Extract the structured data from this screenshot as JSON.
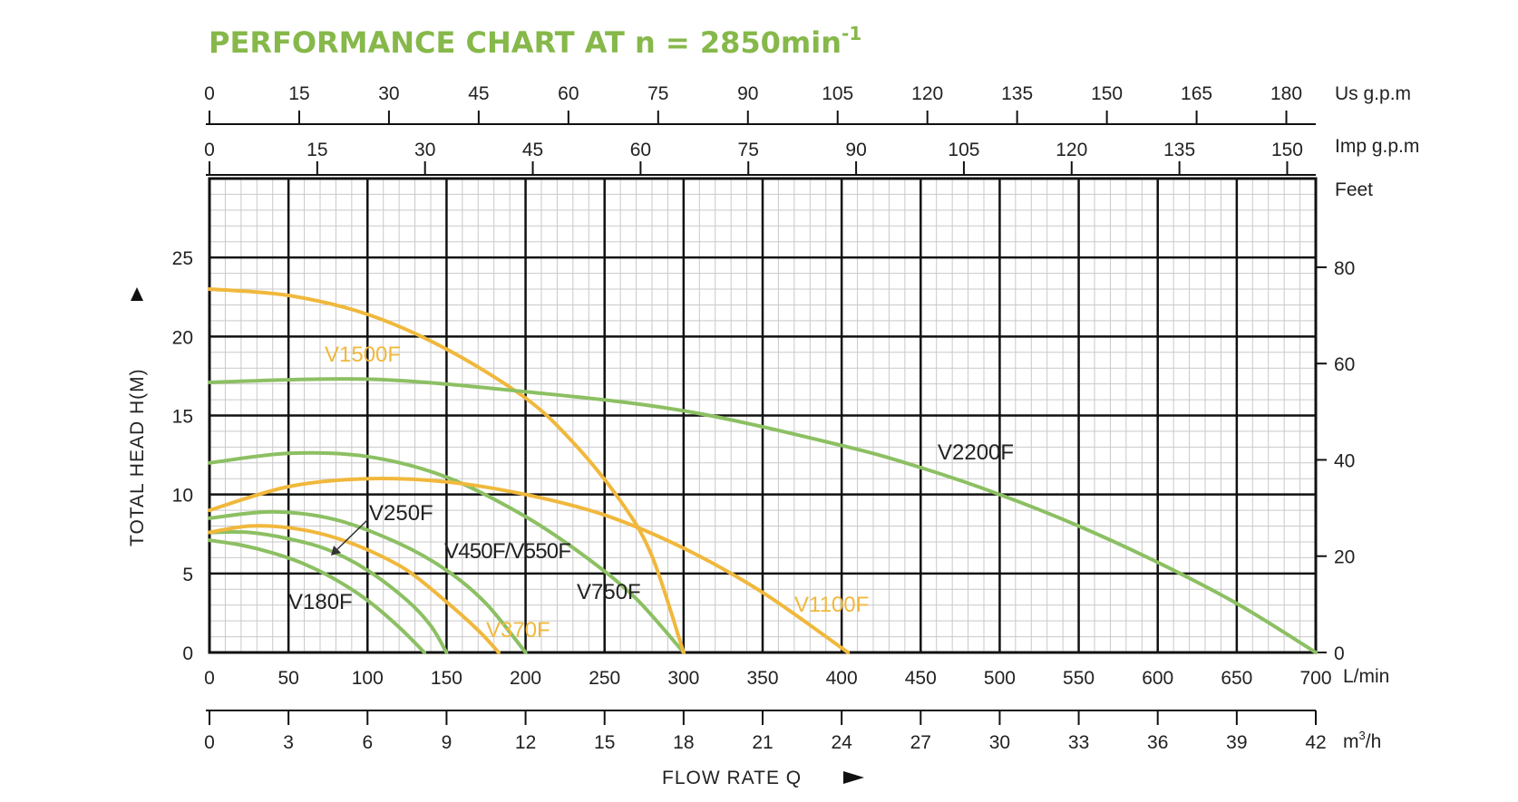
{
  "chart_data": {
    "type": "line",
    "title": {
      "main": "PERFORMANCE CHART AT n = 2850min",
      "superscript": "-1"
    },
    "xlabel": "FLOW RATE Q",
    "ylabel": "TOTAL HEAD  H(M)",
    "xlim": [
      0,
      700
    ],
    "ylim": [
      0,
      30
    ],
    "grid": true,
    "x_ticks": [
      0,
      50,
      100,
      150,
      200,
      250,
      300,
      350,
      400,
      450,
      500,
      550,
      600,
      650,
      700
    ],
    "x_unit": "L/min",
    "y_ticks": [
      0,
      5,
      10,
      15,
      20,
      25
    ],
    "secondary_axes": {
      "us_gpm": {
        "label": "Us g.p.m",
        "ticks": [
          0,
          15,
          30,
          45,
          60,
          75,
          90,
          105,
          120,
          135,
          150,
          165,
          180
        ]
      },
      "imp_gpm": {
        "label": "Imp g.p.m",
        "ticks": [
          0,
          15,
          30,
          45,
          60,
          75,
          90,
          105,
          120,
          135,
          150
        ]
      },
      "m3h": {
        "label_base": "m",
        "label_sup": "3",
        "label_tail": "/h",
        "ticks": [
          0,
          3,
          6,
          9,
          12,
          15,
          18,
          21,
          24,
          27,
          30,
          33,
          36,
          39,
          42
        ]
      },
      "feet": {
        "label": "Feet",
        "ticks": [
          0,
          20,
          40,
          60,
          80
        ]
      }
    },
    "colors": {
      "green": "#8cc063",
      "orange": "#f0b83c",
      "title": "#86b84a"
    },
    "series": [
      {
        "name": "V180F",
        "color": "green",
        "label": "V180F",
        "x": [
          0,
          20,
          40,
          60,
          80,
          100,
          120,
          136
        ],
        "y": [
          7.1,
          6.8,
          6.3,
          5.6,
          4.6,
          3.3,
          1.6,
          0
        ]
      },
      {
        "name": "V250F",
        "color": "green",
        "label": "V250F",
        "x": [
          0,
          25,
          50,
          75,
          100,
          125,
          140,
          150
        ],
        "y": [
          7.6,
          7.6,
          7.2,
          6.5,
          5.2,
          3.3,
          1.7,
          0
        ]
      },
      {
        "name": "V370F",
        "color": "orange",
        "label": "V370F",
        "x": [
          0,
          25,
          50,
          75,
          100,
          125,
          150,
          170,
          183
        ],
        "y": [
          7.6,
          8.0,
          7.9,
          7.4,
          6.5,
          5.2,
          3.2,
          1.4,
          0
        ]
      },
      {
        "name": "V450F/V550F",
        "color": "green",
        "label": "V450F/V550F",
        "x": [
          0,
          40,
          80,
          120,
          150,
          175,
          200
        ],
        "y": [
          8.5,
          8.9,
          8.4,
          6.9,
          5.2,
          3.1,
          0
        ]
      },
      {
        "name": "V750F",
        "color": "green",
        "label": "V750F",
        "x": [
          0,
          50,
          100,
          150,
          200,
          240,
          270,
          300
        ],
        "y": [
          12.0,
          12.6,
          12.4,
          11.1,
          8.6,
          5.9,
          3.4,
          0
        ]
      },
      {
        "name": "V1100F",
        "color": "orange",
        "label": "V1100F",
        "x": [
          0,
          50,
          100,
          150,
          200,
          250,
          300,
          350,
          404
        ],
        "y": [
          9.0,
          10.5,
          11.0,
          10.8,
          10.0,
          8.7,
          6.6,
          3.8,
          0
        ]
      },
      {
        "name": "V1500F",
        "color": "orange",
        "label": "V1500F",
        "x": [
          0,
          50,
          100,
          150,
          200,
          230,
          260,
          280,
          300
        ],
        "y": [
          23.0,
          22.6,
          21.4,
          19.2,
          16.1,
          13.3,
          9.6,
          6.1,
          0
        ]
      },
      {
        "name": "V2200F",
        "color": "green",
        "label": "V2200F",
        "x": [
          0,
          100,
          200,
          300,
          400,
          450,
          500,
          550,
          600,
          650,
          700
        ],
        "y": [
          17.1,
          17.3,
          16.5,
          15.3,
          13.1,
          11.7,
          10.0,
          8.0,
          5.7,
          3.1,
          0
        ]
      }
    ]
  }
}
